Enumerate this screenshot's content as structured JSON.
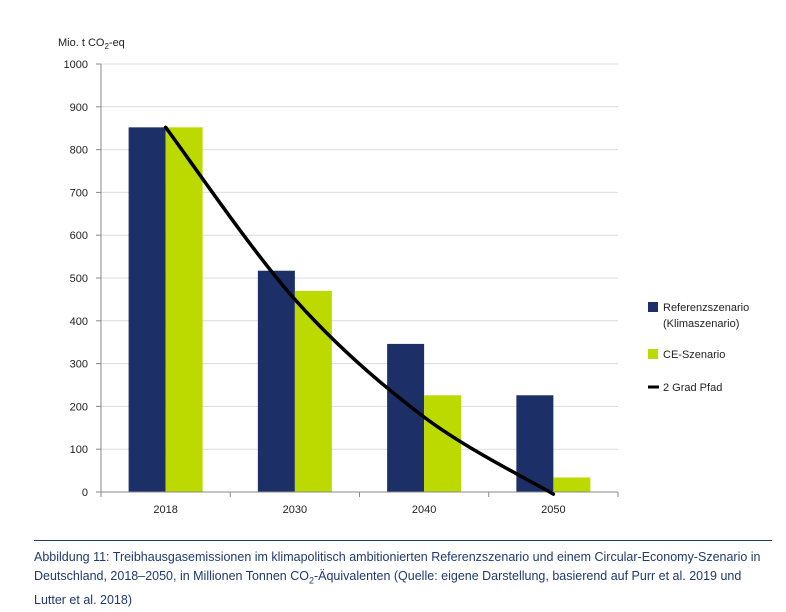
{
  "chart_data": {
    "type": "bar",
    "ylabel_prefix": "Mio. t CO",
    "ylabel_sub": "2",
    "ylabel_suffix": "-eq",
    "ylim": [
      0,
      1000
    ],
    "yticks": [
      0,
      100,
      200,
      300,
      400,
      500,
      600,
      700,
      800,
      900,
      1000
    ],
    "categories": [
      "2018",
      "2030",
      "2040",
      "2050"
    ],
    "grid": true,
    "series": [
      {
        "name": "Referenzszenario",
        "name_line2": "(Klimaszenario)",
        "color": "#1c2f66",
        "values": [
          852,
          517,
          346,
          226
        ]
      },
      {
        "name": "CE-Szenario",
        "color": "#bcd900",
        "values": [
          852,
          470,
          226,
          34
        ]
      }
    ],
    "line": {
      "name": "2 Grad Pfad",
      "color": "#000000",
      "points": [
        {
          "x": "2018",
          "y": 852
        },
        {
          "x": "2030",
          "y": 450
        },
        {
          "x": "2040",
          "y": 175
        },
        {
          "x": "2050",
          "y": -5
        }
      ]
    },
    "legend_position": "right"
  },
  "caption": {
    "line1": "Abbildung 11: Treibhausgasemissionen im klimapolitisch ambitionierten Referenzszenario und einem Circular-Economy-Szenario in",
    "line2_before": "Deutschland, 2018–2050, in Millionen Tonnen CO",
    "line2_sub": "2",
    "line2_after": "-Äquivalenten (Quelle: eigene Darstellung, basierend auf Purr et al. 2019 und",
    "line3": "Lutter et al. 2018)"
  }
}
